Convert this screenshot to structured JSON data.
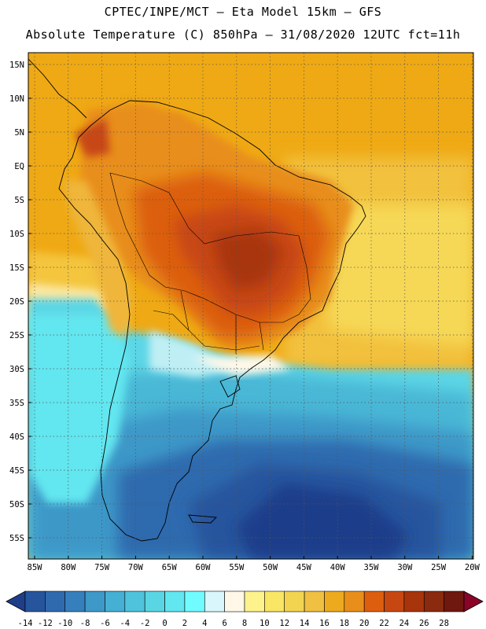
{
  "header": {
    "line1": "CPTEC/INPE/MCT –  Eta Model 15km – GFS",
    "line2": "Absolute Temperature (C) 850hPa – 31/08/2020 12UTC fct=11h"
  },
  "axes": {
    "lat_labels": [
      "15N",
      "10N",
      "5N",
      "EQ",
      "5S",
      "10S",
      "15S",
      "20S",
      "25S",
      "30S",
      "35S",
      "40S",
      "45S",
      "50S",
      "55S"
    ],
    "lon_labels": [
      "85W",
      "80W",
      "75W",
      "70W",
      "65W",
      "60W",
      "55W",
      "50W",
      "45W",
      "40W",
      "35W",
      "30W",
      "25W",
      "20W"
    ]
  },
  "colorbar": {
    "labels": [
      "-14",
      "-12",
      "-10",
      "-8",
      "-6",
      "-4",
      "-2",
      "0",
      "2",
      "4",
      "6",
      "8",
      "10",
      "12",
      "14",
      "16",
      "18",
      "20",
      "22",
      "24",
      "26",
      "28"
    ],
    "colors": [
      "#1f3e8a",
      "#26559e",
      "#2f6aae",
      "#367fbd",
      "#3e98c8",
      "#45afd4",
      "#4fc3dc",
      "#5ad5e3",
      "#62e6ef",
      "#70fbff",
      "#d8f6fb",
      "#fff8e8",
      "#fdf28c",
      "#f8e664",
      "#f3d451",
      "#efc041",
      "#eeaa1e",
      "#e88e1a",
      "#dc5e0e",
      "#c74712",
      "#a8340b",
      "#8a2a0e",
      "#6e1810",
      "#8a0428"
    ]
  }
}
